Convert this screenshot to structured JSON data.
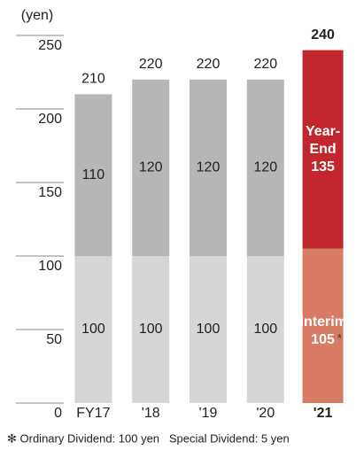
{
  "chart_data": {
    "type": "stacked_bar",
    "y_label": "(yen)",
    "categories": [
      "FY17",
      "'18",
      "'19",
      "'20",
      "'21"
    ],
    "series": [
      {
        "name": "Interim",
        "color": "#d6d6d8",
        "highlight_color": "#d77b65",
        "values": [
          100,
          100,
          100,
          100,
          105
        ]
      },
      {
        "name": "Year-End",
        "color": "#b6b6b9",
        "highlight_color": "#c1272d",
        "values": [
          110,
          120,
          120,
          120,
          135
        ]
      }
    ],
    "totals": [
      210,
      220,
      220,
      220,
      240
    ],
    "highlight_index": 4,
    "note_marker": "*",
    "footnote": "✻ Ordinary Dividend: 100 yen   Special Dividend: 5 yen",
    "ylim": [
      0,
      250
    ],
    "yticks": [
      0,
      50,
      100,
      150,
      200,
      250
    ]
  }
}
